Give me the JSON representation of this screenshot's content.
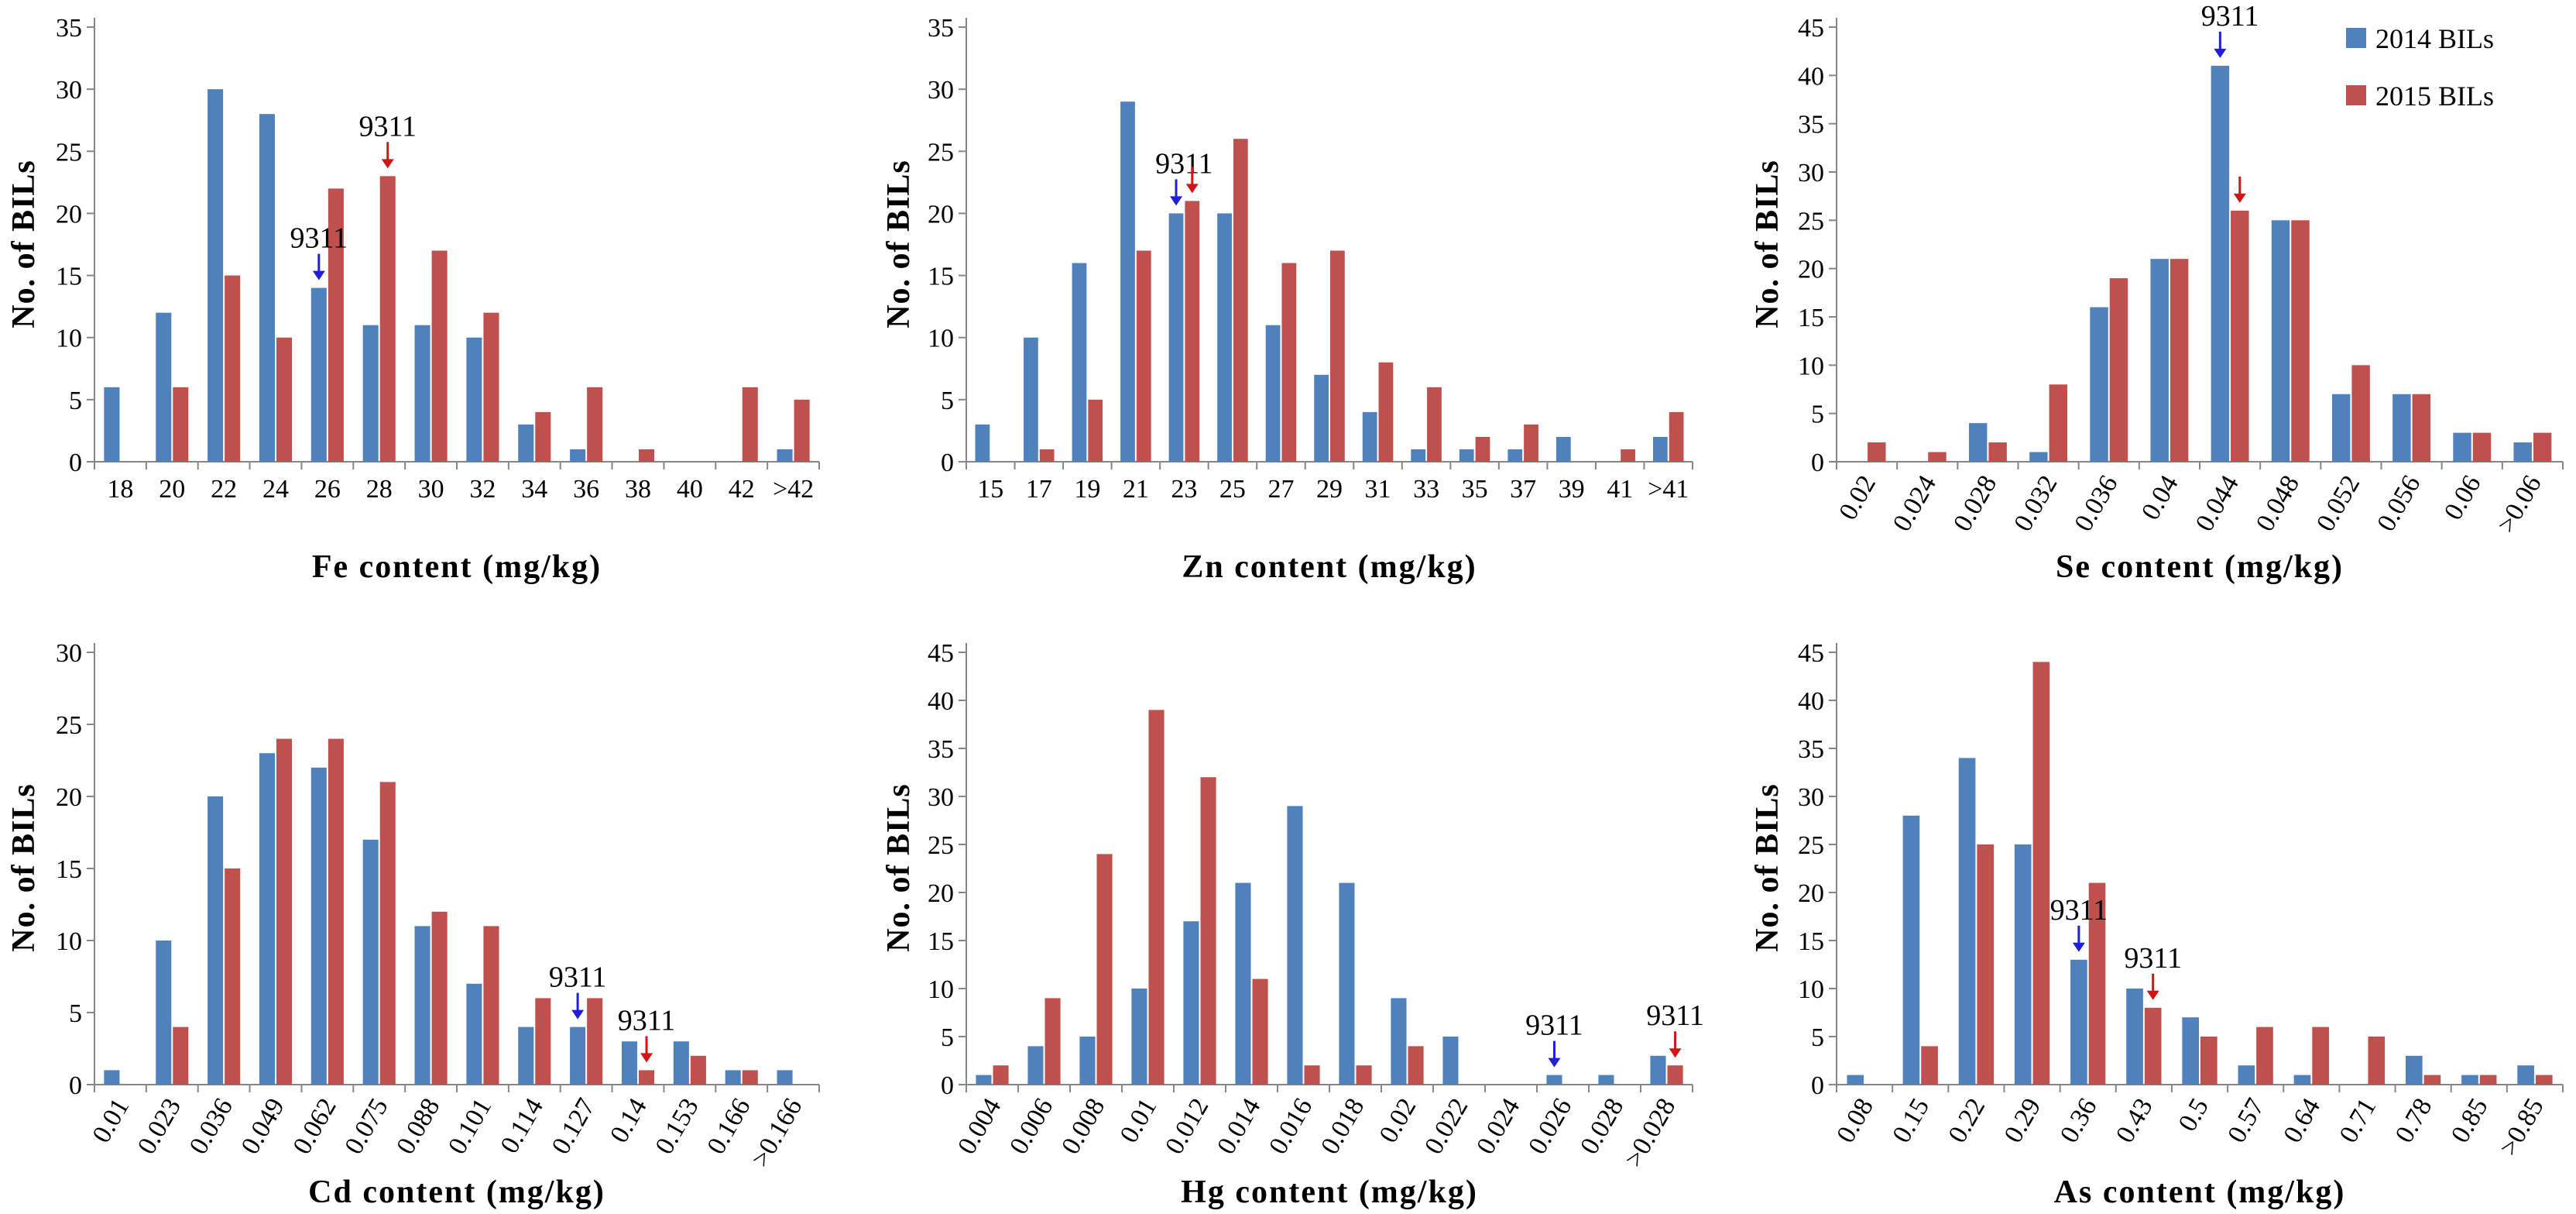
{
  "colors": {
    "s2014": "#4f81bd",
    "s2015": "#c0504d",
    "arrow2014": "#1f1fd6",
    "arrow2015": "#d21414",
    "axis": "#868686"
  },
  "legend": {
    "items": [
      "2014 BILs",
      "2015 BILs"
    ],
    "position": "top-right"
  },
  "chart_data": [
    {
      "id": "fe",
      "type": "bar",
      "categories": [
        "18",
        "20",
        "22",
        "24",
        "26",
        "28",
        "30",
        "32",
        "34",
        "36",
        "38",
        "40",
        "42",
        ">42"
      ],
      "series": [
        {
          "name": "2014 BILs",
          "values": [
            6,
            12,
            30,
            28,
            14,
            11,
            11,
            10,
            3,
            1,
            0,
            0,
            0,
            1
          ]
        },
        {
          "name": "2015 BILs",
          "values": [
            0,
            6,
            15,
            10,
            22,
            23,
            17,
            12,
            4,
            6,
            1,
            0,
            6,
            5
          ]
        }
      ],
      "xlabel": "Fe content (mg/kg)",
      "ylabel": "No. of BILs",
      "ylim": [
        0,
        35
      ],
      "yticks": [
        0,
        5,
        10,
        15,
        20,
        25,
        30,
        35
      ],
      "rotated_ticks": false,
      "annotations": [
        {
          "text": "9311",
          "category": "26",
          "series": "2014 BILs"
        },
        {
          "text": "9311",
          "category": "28",
          "series": "2015 BILs"
        }
      ]
    },
    {
      "id": "zn",
      "type": "bar",
      "categories": [
        "15",
        "17",
        "19",
        "21",
        "23",
        "25",
        "27",
        "29",
        "31",
        "33",
        "35",
        "37",
        "39",
        "41",
        ">41"
      ],
      "series": [
        {
          "name": "2014 BILs",
          "values": [
            3,
            10,
            16,
            29,
            20,
            20,
            11,
            7,
            4,
            1,
            1,
            1,
            2,
            0,
            2
          ]
        },
        {
          "name": "2015 BILs",
          "values": [
            0,
            1,
            5,
            17,
            21,
            26,
            16,
            17,
            8,
            6,
            2,
            3,
            0,
            1,
            4
          ]
        }
      ],
      "xlabel": "Zn content (mg/kg)",
      "ylabel": "No. of BILs",
      "ylim": [
        0,
        35
      ],
      "yticks": [
        0,
        5,
        10,
        15,
        20,
        25,
        30,
        35
      ],
      "rotated_ticks": false,
      "annotations": [
        {
          "text": "9311",
          "category": "23",
          "series": "2014 BILs"
        },
        {
          "text": "9311",
          "category": "23",
          "series": "2015 BILs"
        }
      ]
    },
    {
      "id": "se",
      "type": "bar",
      "categories": [
        "0.02",
        "0.024",
        "0.028",
        "0.032",
        "0.036",
        "0.04",
        "0.044",
        "0.048",
        "0.052",
        "0.056",
        "0.06",
        ">0.06"
      ],
      "series": [
        {
          "name": "2014 BILs",
          "values": [
            0,
            0,
            4,
            1,
            16,
            21,
            41,
            25,
            7,
            7,
            3,
            2
          ]
        },
        {
          "name": "2015 BILs",
          "values": [
            2,
            1,
            2,
            8,
            19,
            21,
            26,
            25,
            10,
            7,
            3,
            3
          ]
        }
      ],
      "xlabel": "Se content (mg/kg)",
      "ylabel": "No. of BILs",
      "ylim": [
        0,
        45
      ],
      "yticks": [
        0,
        5,
        10,
        15,
        20,
        25,
        30,
        35,
        40,
        45
      ],
      "rotated_ticks": true,
      "annotations": [
        {
          "text": "9311",
          "category": "0.044",
          "series": "2014 BILs"
        },
        {
          "text": "9311",
          "category": "0.044",
          "series": "2015 BILs"
        }
      ]
    },
    {
      "id": "cd",
      "type": "bar",
      "categories": [
        "0.01",
        "0.023",
        "0.036",
        "0.049",
        "0.062",
        "0.075",
        "0.088",
        "0.101",
        "0.114",
        "0.127",
        "0.14",
        "0.153",
        "0.166",
        ">0.166"
      ],
      "series": [
        {
          "name": "2014 BILs",
          "values": [
            1,
            10,
            20,
            23,
            22,
            17,
            11,
            7,
            4,
            4,
            3,
            3,
            1,
            1
          ]
        },
        {
          "name": "2015 BILs",
          "values": [
            0,
            4,
            15,
            24,
            24,
            21,
            12,
            11,
            6,
            6,
            1,
            2,
            1,
            0
          ]
        }
      ],
      "xlabel": "Cd content (mg/kg)",
      "ylabel": "No. of BILs",
      "ylim": [
        0,
        30
      ],
      "yticks": [
        0,
        5,
        10,
        15,
        20,
        25,
        30
      ],
      "rotated_ticks": true,
      "annotations": [
        {
          "text": "9311",
          "category": "0.127",
          "series": "2014 BILs"
        },
        {
          "text": "9311",
          "category": "0.14",
          "series": "2015 BILs"
        }
      ]
    },
    {
      "id": "hg",
      "type": "bar",
      "categories": [
        "0.004",
        "0.006",
        "0.008",
        "0.01",
        "0.012",
        "0.014",
        "0.016",
        "0.018",
        "0.02",
        "0.022",
        "0.024",
        "0.026",
        "0.028",
        ">0.028"
      ],
      "series": [
        {
          "name": "2014 BILs",
          "values": [
            1,
            4,
            5,
            10,
            17,
            21,
            29,
            21,
            9,
            5,
            0,
            1,
            1,
            3
          ]
        },
        {
          "name": "2015 BILs",
          "values": [
            2,
            9,
            24,
            39,
            32,
            11,
            2,
            2,
            4,
            0,
            0,
            0,
            0,
            2
          ]
        }
      ],
      "xlabel": "Hg content (mg/kg)",
      "ylabel": "No. of BILs",
      "ylim": [
        0,
        45
      ],
      "yticks": [
        0,
        5,
        10,
        15,
        20,
        25,
        30,
        35,
        40,
        45
      ],
      "rotated_ticks": true,
      "annotations": [
        {
          "text": "9311",
          "category": "0.026",
          "series": "2014 BILs"
        },
        {
          "text": "9311",
          "category": ">0.028",
          "series": "2015 BILs"
        }
      ]
    },
    {
      "id": "as",
      "type": "bar",
      "categories": [
        "0.08",
        "0.15",
        "0.22",
        "0.29",
        "0.36",
        "0.43",
        "0.5",
        "0.57",
        "0.64",
        "0.71",
        "0.78",
        "0.85",
        ">0.85"
      ],
      "series": [
        {
          "name": "2014 BILs",
          "values": [
            1,
            28,
            34,
            25,
            13,
            10,
            7,
            2,
            1,
            0,
            3,
            1,
            2
          ]
        },
        {
          "name": "2015 BILs",
          "values": [
            0,
            4,
            25,
            44,
            21,
            8,
            5,
            6,
            6,
            5,
            1,
            1,
            1
          ]
        }
      ],
      "xlabel": "As content (mg/kg)",
      "ylabel": "No. of BILs",
      "ylim": [
        0,
        45
      ],
      "yticks": [
        0,
        5,
        10,
        15,
        20,
        25,
        30,
        35,
        40,
        45
      ],
      "rotated_ticks": true,
      "annotations": [
        {
          "text": "9311",
          "category": "0.36",
          "series": "2014 BILs"
        },
        {
          "text": "9311",
          "category": "0.43",
          "series": "2015 BILs"
        }
      ]
    }
  ]
}
